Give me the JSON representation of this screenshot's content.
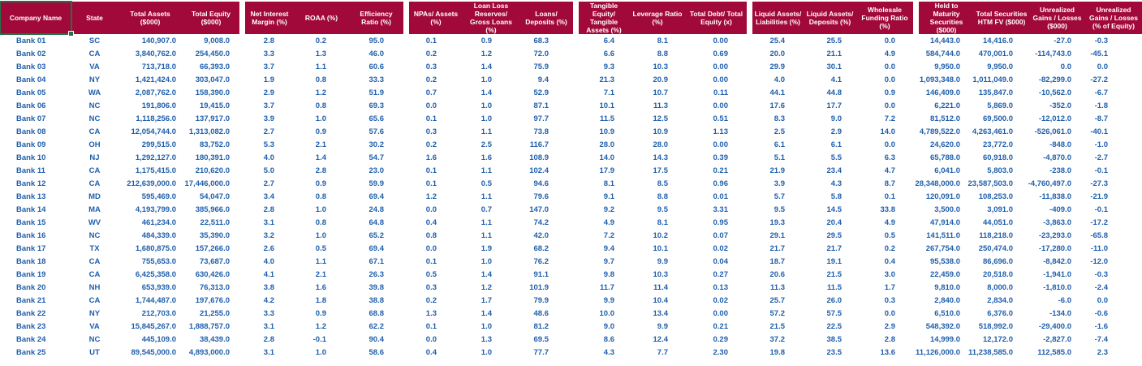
{
  "colors": {
    "header_bg": "#A1093A",
    "header_text": "#FFFFFF",
    "data_text": "#1F5FAC",
    "selection_border": "#217346",
    "background": "#FFFFFF"
  },
  "selection": {
    "selected_header_cell": "Company Name"
  },
  "table": {
    "column_groups": [
      {
        "name": "identity",
        "column_indexes": [
          0,
          1,
          2,
          3
        ]
      },
      {
        "name": "profitability",
        "column_indexes": [
          4,
          5,
          6
        ]
      },
      {
        "name": "asset-quality",
        "column_indexes": [
          7,
          8,
          9
        ]
      },
      {
        "name": "capital",
        "column_indexes": [
          10,
          11,
          12
        ]
      },
      {
        "name": "liquidity",
        "column_indexes": [
          13,
          14,
          15
        ]
      },
      {
        "name": "securities",
        "column_indexes": [
          16,
          17,
          18,
          19
        ]
      }
    ],
    "columns": [
      "Company Name",
      "State",
      "Total Assets ($000)",
      "Total Equity ($000)",
      "Net Interest Margin (%)",
      "ROAA (%)",
      "Efficiency Ratio (%)",
      "NPAs/ Assets (%)",
      "Loan Loss Reserves/ Gross Loans (%)",
      "Loans/ Deposits (%)",
      "Tangible Equity/ Tangible Assets (%)",
      "Leverage Ratio (%)",
      "Total Debt/ Total Equity (x)",
      "Liquid Assets/ Liabilities (%)",
      "Liquid Assets/ Deposits (%)",
      "Wholesale Funding Ratio (%)",
      "Held to Maturity Securities ($000)",
      "Total Securities HTM FV ($000)",
      "Unrealized Gains / Losses ($000)",
      "Unrealized Gains / Losses (% of Equity)"
    ],
    "rows": [
      [
        "Bank 01",
        "SC",
        "140,907.0",
        "9,008.0",
        "2.8",
        "0.2",
        "95.0",
        "0.1",
        "0.9",
        "68.3",
        "6.4",
        "8.1",
        "0.00",
        "25.4",
        "25.5",
        "0.0",
        "14,443.0",
        "14,416.0",
        "-27.0",
        "-0.3"
      ],
      [
        "Bank 02",
        "CA",
        "3,840,762.0",
        "254,450.0",
        "3.3",
        "1.3",
        "46.0",
        "0.2",
        "1.2",
        "72.0",
        "6.6",
        "8.8",
        "0.69",
        "20.0",
        "21.1",
        "4.9",
        "584,744.0",
        "470,001.0",
        "-114,743.0",
        "-45.1"
      ],
      [
        "Bank 03",
        "VA",
        "713,718.0",
        "66,393.0",
        "3.7",
        "1.1",
        "60.6",
        "0.3",
        "1.4",
        "75.9",
        "9.3",
        "10.3",
        "0.00",
        "29.9",
        "30.1",
        "0.0",
        "9,950.0",
        "9,950.0",
        "0.0",
        "0.0"
      ],
      [
        "Bank 04",
        "NY",
        "1,421,424.0",
        "303,047.0",
        "1.9",
        "0.8",
        "33.3",
        "0.2",
        "1.0",
        "9.4",
        "21.3",
        "20.9",
        "0.00",
        "4.0",
        "4.1",
        "0.0",
        "1,093,348.0",
        "1,011,049.0",
        "-82,299.0",
        "-27.2"
      ],
      [
        "Bank 05",
        "WA",
        "2,087,762.0",
        "158,390.0",
        "2.9",
        "1.2",
        "51.9",
        "0.7",
        "1.4",
        "52.9",
        "7.1",
        "10.7",
        "0.11",
        "44.1",
        "44.8",
        "0.9",
        "146,409.0",
        "135,847.0",
        "-10,562.0",
        "-6.7"
      ],
      [
        "Bank 06",
        "NC",
        "191,806.0",
        "19,415.0",
        "3.7",
        "0.8",
        "69.3",
        "0.0",
        "1.0",
        "87.1",
        "10.1",
        "11.3",
        "0.00",
        "17.6",
        "17.7",
        "0.0",
        "6,221.0",
        "5,869.0",
        "-352.0",
        "-1.8"
      ],
      [
        "Bank 07",
        "NC",
        "1,118,256.0",
        "137,917.0",
        "3.9",
        "1.0",
        "65.6",
        "0.1",
        "1.0",
        "97.7",
        "11.5",
        "12.5",
        "0.51",
        "8.3",
        "9.0",
        "7.2",
        "81,512.0",
        "69,500.0",
        "-12,012.0",
        "-8.7"
      ],
      [
        "Bank 08",
        "CA",
        "12,054,744.0",
        "1,313,082.0",
        "2.7",
        "0.9",
        "57.6",
        "0.3",
        "1.1",
        "73.8",
        "10.9",
        "10.9",
        "1.13",
        "2.5",
        "2.9",
        "14.0",
        "4,789,522.0",
        "4,263,461.0",
        "-526,061.0",
        "-40.1"
      ],
      [
        "Bank 09",
        "OH",
        "299,515.0",
        "83,752.0",
        "5.3",
        "2.1",
        "30.2",
        "0.2",
        "2.5",
        "116.7",
        "28.0",
        "28.0",
        "0.00",
        "6.1",
        "6.1",
        "0.0",
        "24,620.0",
        "23,772.0",
        "-848.0",
        "-1.0"
      ],
      [
        "Bank 10",
        "NJ",
        "1,292,127.0",
        "180,391.0",
        "4.0",
        "1.4",
        "54.7",
        "1.6",
        "1.6",
        "108.9",
        "14.0",
        "14.3",
        "0.39",
        "5.1",
        "5.5",
        "6.3",
        "65,788.0",
        "60,918.0",
        "-4,870.0",
        "-2.7"
      ],
      [
        "Bank 11",
        "CA",
        "1,175,415.0",
        "210,620.0",
        "5.0",
        "2.8",
        "23.0",
        "0.1",
        "1.1",
        "102.4",
        "17.9",
        "17.5",
        "0.21",
        "21.9",
        "23.4",
        "4.7",
        "6,041.0",
        "5,803.0",
        "-238.0",
        "-0.1"
      ],
      [
        "Bank 12",
        "CA",
        "212,639,000.0",
        "17,446,000.0",
        "2.7",
        "0.9",
        "59.9",
        "0.1",
        "0.5",
        "94.6",
        "8.1",
        "8.5",
        "0.96",
        "3.9",
        "4.3",
        "8.7",
        "28,348,000.0",
        "23,587,503.0",
        "-4,760,497.0",
        "-27.3"
      ],
      [
        "Bank 13",
        "MD",
        "595,469.0",
        "54,047.0",
        "3.4",
        "0.8",
        "69.4",
        "1.2",
        "1.1",
        "79.6",
        "9.1",
        "8.8",
        "0.01",
        "5.7",
        "5.8",
        "0.1",
        "120,091.0",
        "108,253.0",
        "-11,838.0",
        "-21.9"
      ],
      [
        "Bank 14",
        "MA",
        "4,193,799.0",
        "385,966.0",
        "2.8",
        "1.0",
        "24.8",
        "0.0",
        "0.7",
        "147.0",
        "9.2",
        "9.5",
        "3.31",
        "9.5",
        "14.5",
        "33.8",
        "3,500.0",
        "3,091.0",
        "-409.0",
        "-0.1"
      ],
      [
        "Bank 15",
        "WV",
        "461,234.0",
        "22,511.0",
        "3.1",
        "0.8",
        "64.8",
        "0.4",
        "1.1",
        "74.2",
        "4.9",
        "8.1",
        "0.95",
        "19.3",
        "20.4",
        "4.9",
        "47,914.0",
        "44,051.0",
        "-3,863.0",
        "-17.2"
      ],
      [
        "Bank 16",
        "NC",
        "484,339.0",
        "35,390.0",
        "3.2",
        "1.0",
        "65.2",
        "0.8",
        "1.1",
        "42.0",
        "7.2",
        "10.2",
        "0.07",
        "29.1",
        "29.5",
        "0.5",
        "141,511.0",
        "118,218.0",
        "-23,293.0",
        "-65.8"
      ],
      [
        "Bank 17",
        "TX",
        "1,680,875.0",
        "157,266.0",
        "2.6",
        "0.5",
        "69.4",
        "0.0",
        "1.9",
        "68.2",
        "9.4",
        "10.1",
        "0.02",
        "21.7",
        "21.7",
        "0.2",
        "267,754.0",
        "250,474.0",
        "-17,280.0",
        "-11.0"
      ],
      [
        "Bank 18",
        "CA",
        "755,653.0",
        "73,687.0",
        "4.0",
        "1.1",
        "67.1",
        "0.1",
        "1.0",
        "76.2",
        "9.7",
        "9.9",
        "0.04",
        "18.7",
        "19.1",
        "0.4",
        "95,538.0",
        "86,696.0",
        "-8,842.0",
        "-12.0"
      ],
      [
        "Bank 19",
        "CA",
        "6,425,358.0",
        "630,426.0",
        "4.1",
        "2.1",
        "26.3",
        "0.5",
        "1.4",
        "91.1",
        "9.8",
        "10.3",
        "0.27",
        "20.6",
        "21.5",
        "3.0",
        "22,459.0",
        "20,518.0",
        "-1,941.0",
        "-0.3"
      ],
      [
        "Bank 20",
        "NH",
        "653,939.0",
        "76,313.0",
        "3.8",
        "1.6",
        "39.8",
        "0.3",
        "1.2",
        "101.9",
        "11.7",
        "11.4",
        "0.13",
        "11.3",
        "11.5",
        "1.7",
        "9,810.0",
        "8,000.0",
        "-1,810.0",
        "-2.4"
      ],
      [
        "Bank 21",
        "CA",
        "1,744,487.0",
        "197,676.0",
        "4.2",
        "1.8",
        "38.8",
        "0.2",
        "1.7",
        "79.9",
        "9.9",
        "10.4",
        "0.02",
        "25.7",
        "26.0",
        "0.3",
        "2,840.0",
        "2,834.0",
        "-6.0",
        "0.0"
      ],
      [
        "Bank 22",
        "NY",
        "212,703.0",
        "21,255.0",
        "3.3",
        "0.9",
        "68.8",
        "1.3",
        "1.4",
        "48.6",
        "10.0",
        "13.4",
        "0.00",
        "57.2",
        "57.5",
        "0.0",
        "6,510.0",
        "6,376.0",
        "-134.0",
        "-0.6"
      ],
      [
        "Bank 23",
        "VA",
        "15,845,267.0",
        "1,888,757.0",
        "3.1",
        "1.2",
        "62.2",
        "0.1",
        "1.0",
        "81.2",
        "9.0",
        "9.9",
        "0.21",
        "21.5",
        "22.5",
        "2.9",
        "548,392.0",
        "518,992.0",
        "-29,400.0",
        "-1.6"
      ],
      [
        "Bank 24",
        "NC",
        "445,109.0",
        "38,439.0",
        "2.8",
        "-0.1",
        "90.4",
        "0.0",
        "1.3",
        "69.5",
        "8.6",
        "12.4",
        "0.29",
        "37.2",
        "38.5",
        "2.8",
        "14,999.0",
        "12,172.0",
        "-2,827.0",
        "-7.4"
      ],
      [
        "Bank 25",
        "UT",
        "89,545,000.0",
        "4,893,000.0",
        "3.1",
        "1.0",
        "58.6",
        "0.4",
        "1.0",
        "77.7",
        "4.3",
        "7.7",
        "2.30",
        "19.8",
        "23.5",
        "13.6",
        "11,126,000.0",
        "11,238,585.0",
        "112,585.0",
        "2.3"
      ]
    ]
  }
}
